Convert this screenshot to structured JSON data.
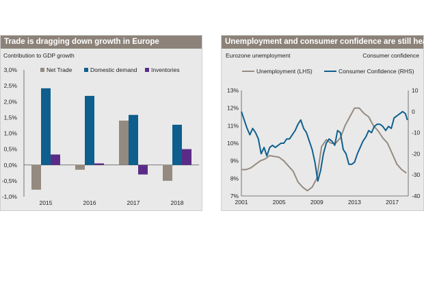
{
  "left": {
    "title": "Trade is dragging down growth in Europe",
    "subtitle": "Contribution to GDP growth"
  },
  "right": {
    "title": "Unemployment and consumer confidence are still healthy",
    "left_axis_label": "Eurozone unemployment",
    "right_axis_label": "Consumer confidence"
  },
  "chart_data": [
    {
      "type": "bar",
      "categories": [
        "2015",
        "2016",
        "2017",
        "2018"
      ],
      "y_ticks": [
        "3,0%",
        "2,5%",
        "2,0%",
        "1,5%",
        "1,0%",
        "0,5%",
        "0,0%",
        "-0,5%",
        "-1,0%"
      ],
      "ylim": [
        -1.0,
        3.0
      ],
      "legend_position": "top",
      "series": [
        {
          "name": "Net Trade",
          "color": "#948a80",
          "values": [
            -0.78,
            -0.15,
            1.4,
            -0.5
          ]
        },
        {
          "name": "Domestic demand",
          "color": "#0e5f8d",
          "values": [
            2.42,
            2.18,
            1.58,
            1.27
          ]
        },
        {
          "name": "Inventories",
          "color": "#5b2c87",
          "values": [
            0.33,
            0.05,
            -0.3,
            0.5
          ]
        }
      ]
    },
    {
      "type": "line",
      "x_ticks": [
        "2001",
        "2005",
        "2009",
        "2013",
        "2017"
      ],
      "xlim": [
        2001,
        2018.7
      ],
      "y_left_ticks": [
        "13%",
        "12%",
        "11%",
        "10%",
        "9%",
        "8%",
        "7%"
      ],
      "ylim_left": [
        7,
        13
      ],
      "y_right_ticks": [
        "10",
        "0",
        "-10",
        "-20",
        "-30",
        "-40"
      ],
      "ylim_right": [
        -40,
        10
      ],
      "legend_position": "top",
      "series": [
        {
          "name": "Unemployment (LHS)",
          "axis": "left",
          "color": "#948a80",
          "x": [
            2001.0,
            2001.5,
            2002.0,
            2002.5,
            2003.0,
            2003.5,
            2004.0,
            2004.5,
            2005.0,
            2005.5,
            2006.0,
            2006.5,
            2007.0,
            2007.5,
            2008.0,
            2008.5,
            2009.0,
            2009.5,
            2010.0,
            2010.5,
            2011.0,
            2011.5,
            2012.0,
            2012.5,
            2013.0,
            2013.5,
            2014.0,
            2014.5,
            2015.0,
            2015.5,
            2016.0,
            2016.5,
            2017.0,
            2017.5,
            2018.0,
            2018.5
          ],
          "y": [
            8.5,
            8.5,
            8.6,
            8.8,
            9.0,
            9.1,
            9.3,
            9.25,
            9.2,
            9.0,
            8.7,
            8.4,
            7.8,
            7.5,
            7.3,
            7.5,
            8.0,
            9.8,
            10.2,
            10.0,
            10.0,
            10.3,
            11.0,
            11.5,
            12.0,
            12.0,
            11.7,
            11.5,
            11.0,
            10.7,
            10.3,
            10.0,
            9.4,
            8.8,
            8.5,
            8.3
          ]
        },
        {
          "name": "Consumer Confidence (RHS)",
          "axis": "right",
          "color": "#0e5f8d",
          "x": [
            2001.0,
            2001.3,
            2001.6,
            2001.9,
            2002.2,
            2002.5,
            2002.8,
            2003.1,
            2003.4,
            2003.7,
            2004.0,
            2004.3,
            2004.6,
            2004.9,
            2005.2,
            2005.5,
            2005.8,
            2006.1,
            2006.4,
            2006.7,
            2007.0,
            2007.3,
            2007.6,
            2007.9,
            2008.2,
            2008.5,
            2008.8,
            2009.1,
            2009.4,
            2009.7,
            2010.0,
            2010.3,
            2010.6,
            2010.9,
            2011.2,
            2011.5,
            2011.8,
            2012.1,
            2012.4,
            2012.7,
            2013.0,
            2013.3,
            2013.6,
            2013.9,
            2014.2,
            2014.5,
            2014.8,
            2015.1,
            2015.4,
            2015.7,
            2016.0,
            2016.3,
            2016.6,
            2016.9,
            2017.2,
            2017.5,
            2017.8,
            2018.1,
            2018.4,
            2018.6
          ],
          "y": [
            0,
            -4,
            -8,
            -11,
            -8,
            -10,
            -13,
            -20,
            -17,
            -21,
            -17,
            -16,
            -17,
            -16,
            -15,
            -15,
            -13,
            -13,
            -11,
            -9,
            -6,
            -4,
            -8,
            -10,
            -14,
            -18,
            -24,
            -33,
            -28,
            -20,
            -15,
            -13,
            -14,
            -16,
            -9,
            -10,
            -18,
            -20,
            -25,
            -25,
            -24,
            -20,
            -17,
            -14,
            -12,
            -9,
            -10,
            -7,
            -6,
            -6,
            -7,
            -9,
            -7,
            -8,
            -3,
            -2,
            -1,
            0,
            -1,
            -4
          ]
        }
      ]
    }
  ]
}
